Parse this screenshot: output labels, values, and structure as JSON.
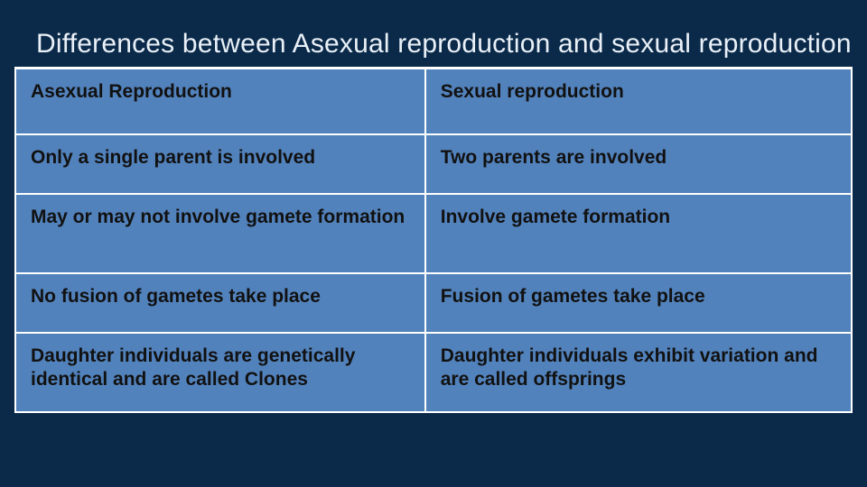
{
  "slide": {
    "title": "Differences between Asexual reproduction and sexual reproduction",
    "background_color": "#0b2a4a",
    "title_color": "#e9f0f7",
    "title_fontsize": 30,
    "underline_color": "#ffffff"
  },
  "table": {
    "type": "table",
    "cell_background": "#5282bc",
    "cell_text_color": "#111111",
    "cell_border_color": "#ffffff",
    "cell_fontsize": 21,
    "cell_fontweight": 700,
    "columns": [
      {
        "label": "Asexual Reproduction",
        "width_pct": 49
      },
      {
        "label": "Sexual reproduction",
        "width_pct": 51
      }
    ],
    "rows": [
      [
        "Only a single parent is involved",
        "Two parents are involved"
      ],
      [
        "May or may not involve gamete formation",
        "Involve gamete formation"
      ],
      [
        "No fusion of gametes take place",
        "Fusion of gametes take place"
      ],
      [
        "Daughter individuals are genetically identical and are called Clones",
        "Daughter individuals exhibit variation and are called offsprings"
      ]
    ]
  }
}
